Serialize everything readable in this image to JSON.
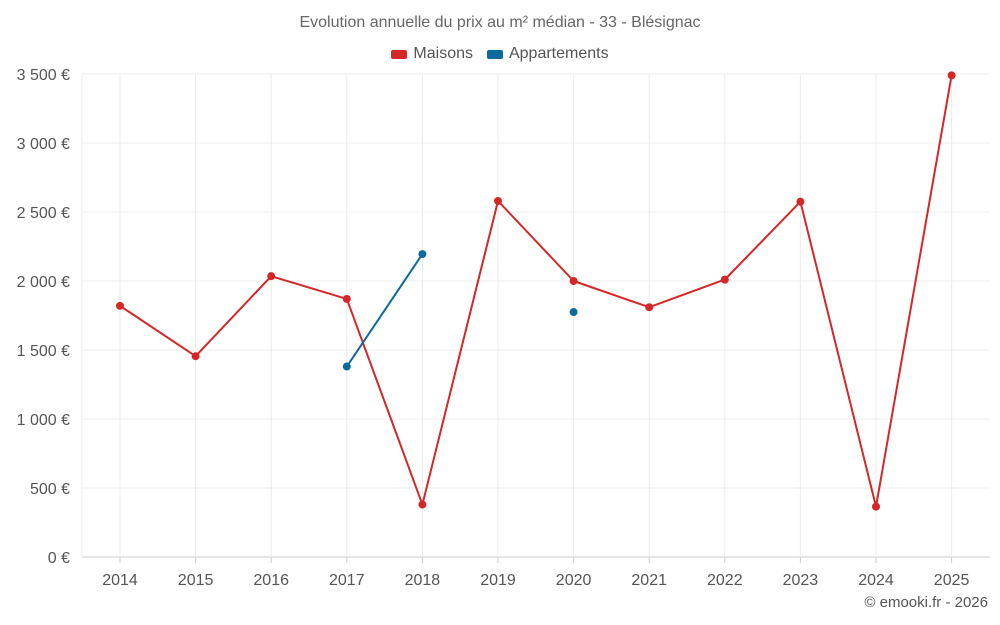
{
  "chart_data": {
    "type": "line",
    "title": "Evolution annuelle du prix au m² médian - 33 - Blésignac",
    "categories": [
      "2014",
      "2015",
      "2016",
      "2017",
      "2018",
      "2019",
      "2020",
      "2021",
      "2022",
      "2023",
      "2024",
      "2025"
    ],
    "series": [
      {
        "name": "Maisons",
        "color": "#d62728",
        "values": [
          1820,
          1455,
          2035,
          1870,
          380,
          2580,
          2000,
          1810,
          2010,
          2575,
          365,
          3490
        ]
      },
      {
        "name": "Appartements",
        "color": "#0d6a9c",
        "values": [
          null,
          null,
          null,
          1380,
          2195,
          null,
          1775,
          null,
          null,
          null,
          null,
          null
        ]
      }
    ],
    "ylim": [
      0,
      3500
    ],
    "yticks": [
      0,
      500,
      1000,
      1500,
      2000,
      2500,
      3000,
      3500
    ],
    "ytick_labels": [
      "0 €",
      "500 €",
      "1 000 €",
      "1 500 €",
      "2 000 €",
      "2 500 €",
      "3 000 €",
      "3 500 €"
    ],
    "xlabel": "",
    "ylabel": "",
    "grid": true,
    "legend_position": "top-center"
  },
  "credit": "© emooki.fr - 2026"
}
